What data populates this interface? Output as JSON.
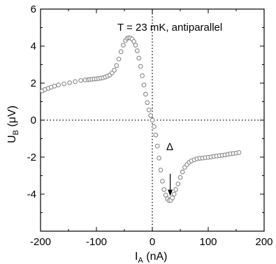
{
  "chart_data": {
    "type": "scatter",
    "title": "",
    "xlabel": {
      "main": "I",
      "sub": "A",
      "unit": " (nA)"
    },
    "ylabel": {
      "main": "U",
      "sub": "B",
      "unit": " (μV)"
    },
    "xlim": [
      -200,
      200
    ],
    "ylim": [
      -6,
      6
    ],
    "xticks": [
      -200,
      -100,
      0,
      100,
      200
    ],
    "yticks": [
      -4,
      -2,
      0,
      2,
      4,
      6
    ],
    "xtick_labels": [
      "-200",
      "-100",
      "0",
      "100",
      "200"
    ],
    "ytick_labels": [
      "-4",
      "-2",
      "0",
      "2",
      "4",
      "6"
    ],
    "annotations": [
      {
        "text": "T = 23 mK, antiparallel"
      },
      {
        "text": "Δ",
        "arrow": {
          "from": [
            32,
            -2.9
          ],
          "to": [
            32,
            -4.1
          ]
        }
      }
    ],
    "reference_lines": [
      {
        "orientation": "horizontal",
        "value": 0,
        "style": "dotted"
      },
      {
        "orientation": "vertical",
        "value": 0,
        "style": "dotted"
      }
    ],
    "series": [
      {
        "marker": "open-circle",
        "color": "#888888",
        "points": [
          [
            -197,
            1.58
          ],
          [
            -192,
            1.65
          ],
          [
            -186,
            1.72
          ],
          [
            -181,
            1.78
          ],
          [
            -175,
            1.84
          ],
          [
            -168,
            1.9
          ],
          [
            -158,
            1.96
          ],
          [
            -148,
            2.02
          ],
          [
            -138,
            2.08
          ],
          [
            -128,
            2.14
          ],
          [
            -120,
            2.17
          ],
          [
            -115,
            2.18
          ],
          [
            -112,
            2.2
          ],
          [
            -108,
            2.21
          ],
          [
            -104,
            2.22
          ],
          [
            -100,
            2.23
          ],
          [
            -96,
            2.25
          ],
          [
            -92,
            2.27
          ],
          [
            -88,
            2.29
          ],
          [
            -84,
            2.33
          ],
          [
            -80,
            2.38
          ],
          [
            -76,
            2.44
          ],
          [
            -72,
            2.55
          ],
          [
            -68,
            2.7
          ],
          [
            -64,
            2.95
          ],
          [
            -60,
            3.3
          ],
          [
            -56,
            3.7
          ],
          [
            -52,
            4.05
          ],
          [
            -48,
            4.3
          ],
          [
            -45,
            4.42
          ],
          [
            -42,
            4.45
          ],
          [
            -39,
            4.44
          ],
          [
            -36,
            4.38
          ],
          [
            -33,
            4.25
          ],
          [
            -30,
            4.05
          ],
          [
            -27,
            3.75
          ],
          [
            -24,
            3.35
          ],
          [
            -21,
            2.9
          ],
          [
            -18,
            2.4
          ],
          [
            -15,
            1.9
          ],
          [
            -12,
            1.4
          ],
          [
            -9,
            0.95
          ],
          [
            -6,
            0.55
          ],
          [
            -3,
            0.25
          ],
          [
            0,
            0.0
          ],
          [
            3,
            -0.35
          ],
          [
            6,
            -0.8
          ],
          [
            9,
            -1.4
          ],
          [
            12,
            -2.05
          ],
          [
            15,
            -2.7
          ],
          [
            18,
            -3.3
          ],
          [
            21,
            -3.75
          ],
          [
            24,
            -4.05
          ],
          [
            27,
            -4.25
          ],
          [
            30,
            -4.35
          ],
          [
            33,
            -4.33
          ],
          [
            36,
            -4.2
          ],
          [
            39,
            -4.0
          ],
          [
            42,
            -3.75
          ],
          [
            46,
            -3.45
          ],
          [
            50,
            -3.1
          ],
          [
            54,
            -2.8
          ],
          [
            58,
            -2.55
          ],
          [
            62,
            -2.4
          ],
          [
            66,
            -2.28
          ],
          [
            70,
            -2.2
          ],
          [
            75,
            -2.14
          ],
          [
            80,
            -2.09
          ],
          [
            85,
            -2.06
          ],
          [
            90,
            -2.05
          ],
          [
            95,
            -2.03
          ],
          [
            100,
            -2.01
          ],
          [
            105,
            -1.99
          ],
          [
            110,
            -1.96
          ],
          [
            115,
            -1.94
          ],
          [
            120,
            -1.92
          ],
          [
            125,
            -1.9
          ],
          [
            130,
            -1.88
          ],
          [
            135,
            -1.85
          ],
          [
            140,
            -1.82
          ],
          [
            145,
            -1.8
          ],
          [
            150,
            -1.78
          ],
          [
            155,
            -1.75
          ]
        ]
      }
    ]
  }
}
